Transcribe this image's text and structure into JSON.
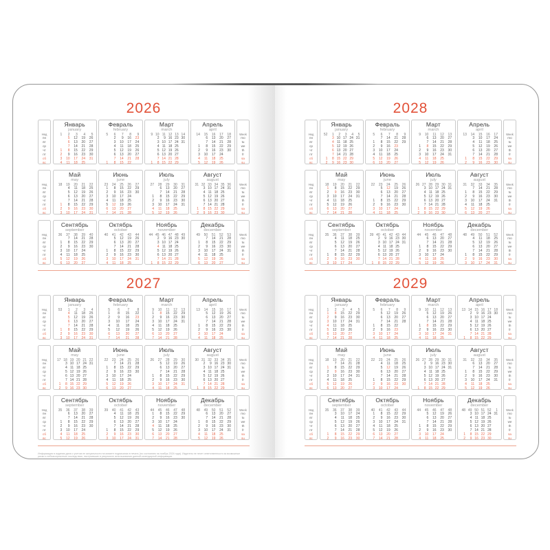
{
  "colors": {
    "accent": "#e25138",
    "accent_soft": "#e76a4f",
    "divider": "#eda28c",
    "text_dark": "#555555",
    "month_name": "#3a3a3a",
    "month_name_en": "#9a9a9a",
    "card_border": "#c9c9c9",
    "book_edge": "#949494"
  },
  "labels": {
    "week_col_ru": "Нед",
    "week_col_en": "Week",
    "days_ru": [
      "пн",
      "вт",
      "ср",
      "чт",
      "пт",
      "сб",
      "вс"
    ],
    "days_en": [
      "mo",
      "tu",
      "we",
      "th",
      "fr",
      "sa",
      "su"
    ]
  },
  "month_names": [
    {
      "ru": "Январь",
      "en": "january"
    },
    {
      "ru": "Февраль",
      "en": "february"
    },
    {
      "ru": "Март",
      "en": "march"
    },
    {
      "ru": "Апрель",
      "en": "april"
    },
    {
      "ru": "Май",
      "en": "may"
    },
    {
      "ru": "Июнь",
      "en": "june"
    },
    {
      "ru": "Июль",
      "en": "july"
    },
    {
      "ru": "Август",
      "en": "august"
    },
    {
      "ru": "Сентябрь",
      "en": "september"
    },
    {
      "ru": "Октябрь",
      "en": "october"
    },
    {
      "ru": "Ноябрь",
      "en": "november"
    },
    {
      "ru": "Декабрь",
      "en": "december"
    }
  ],
  "holidays_by_month": {
    "0": [
      1,
      2,
      3,
      4,
      5,
      6,
      7,
      8
    ],
    "1": [
      23
    ],
    "2": [
      8
    ],
    "4": [
      1,
      9
    ],
    "5": [
      12
    ],
    "10": [
      4
    ]
  },
  "book": {
    "footer_line1": "Информация в издании дана с учетом ее актуальности на момент подписания в печать (по состоянию на ноябрь 2024 года). Издатель не несет ответственности за возможные",
    "footer_line2": "риски и неблагоприятные последствия, наступившие в результате использования данной календарной информации."
  },
  "pages": [
    {
      "name": "left",
      "years": [
        {
          "year": "2026",
          "months": [
            {
              "start": 3,
              "days": 31,
              "weeks": [
                1,
                2,
                3,
                4,
                5
              ]
            },
            {
              "start": 6,
              "days": 28,
              "weeks": [
                5,
                6,
                7,
                8,
                9
              ]
            },
            {
              "start": 6,
              "days": 31,
              "weeks": [
                9,
                10,
                11,
                12,
                13,
                14
              ]
            },
            {
              "start": 2,
              "days": 30,
              "weeks": [
                14,
                15,
                16,
                17,
                18
              ]
            },
            {
              "start": 4,
              "days": 31,
              "weeks": [
                18,
                19,
                20,
                21,
                22
              ]
            },
            {
              "start": 0,
              "days": 30,
              "weeks": [
                23,
                24,
                25,
                26,
                27
              ]
            },
            {
              "start": 2,
              "days": 31,
              "weeks": [
                27,
                28,
                29,
                30,
                31
              ]
            },
            {
              "start": 5,
              "days": 31,
              "weeks": [
                31,
                32,
                33,
                34,
                35,
                36
              ]
            },
            {
              "start": 1,
              "days": 30,
              "weeks": [
                36,
                37,
                38,
                39,
                40
              ]
            },
            {
              "start": 3,
              "days": 31,
              "weeks": [
                40,
                41,
                42,
                43,
                44
              ]
            },
            {
              "start": 6,
              "days": 30,
              "weeks": [
                44,
                45,
                46,
                47,
                48,
                49
              ]
            },
            {
              "start": 1,
              "days": 31,
              "weeks": [
                49,
                50,
                51,
                52,
                53
              ]
            }
          ]
        },
        {
          "year": "2027",
          "months": [
            {
              "start": 4,
              "days": 31,
              "weeks": [
                53,
                1,
                2,
                3,
                4
              ]
            },
            {
              "start": 0,
              "days": 28,
              "weeks": [
                5,
                6,
                7,
                8
              ]
            },
            {
              "start": 0,
              "days": 31,
              "weeks": [
                9,
                10,
                11,
                12,
                13
              ]
            },
            {
              "start": 3,
              "days": 30,
              "weeks": [
                13,
                14,
                15,
                16,
                17
              ]
            },
            {
              "start": 5,
              "days": 31,
              "weeks": [
                17,
                18,
                19,
                20,
                21,
                22
              ]
            },
            {
              "start": 1,
              "days": 30,
              "weeks": [
                22,
                23,
                24,
                25,
                26
              ]
            },
            {
              "start": 3,
              "days": 31,
              "weeks": [
                26,
                27,
                28,
                29,
                30
              ]
            },
            {
              "start": 6,
              "days": 31,
              "weeks": [
                30,
                31,
                32,
                33,
                34,
                35
              ]
            },
            {
              "start": 2,
              "days": 30,
              "weeks": [
                35,
                36,
                37,
                38,
                39
              ]
            },
            {
              "start": 4,
              "days": 31,
              "weeks": [
                39,
                40,
                41,
                42,
                43
              ]
            },
            {
              "start": 0,
              "days": 30,
              "weeks": [
                44,
                45,
                46,
                47,
                48
              ]
            },
            {
              "start": 2,
              "days": 31,
              "weeks": [
                48,
                49,
                50,
                51,
                52
              ]
            }
          ]
        }
      ]
    },
    {
      "name": "right",
      "years": [
        {
          "year": "2028",
          "months": [
            {
              "start": 5,
              "days": 31,
              "weeks": [
                52,
                1,
                2,
                3,
                4,
                5
              ]
            },
            {
              "start": 1,
              "days": 29,
              "weeks": [
                5,
                6,
                7,
                8,
                9
              ]
            },
            {
              "start": 2,
              "days": 31,
              "weeks": [
                9,
                10,
                11,
                12,
                13
              ]
            },
            {
              "start": 5,
              "days": 30,
              "weeks": [
                13,
                14,
                15,
                16,
                17
              ]
            },
            {
              "start": 0,
              "days": 31,
              "weeks": [
                18,
                19,
                20,
                21,
                22
              ]
            },
            {
              "start": 3,
              "days": 30,
              "weeks": [
                22,
                23,
                24,
                25,
                26
              ]
            },
            {
              "start": 5,
              "days": 31,
              "weeks": [
                26,
                27,
                28,
                29,
                30,
                31
              ]
            },
            {
              "start": 1,
              "days": 31,
              "weeks": [
                31,
                32,
                33,
                34,
                35
              ]
            },
            {
              "start": 4,
              "days": 30,
              "weeks": [
                35,
                36,
                37,
                38,
                39
              ]
            },
            {
              "start": 6,
              "days": 31,
              "weeks": [
                39,
                40,
                41,
                42,
                43,
                44
              ]
            },
            {
              "start": 2,
              "days": 30,
              "weeks": [
                44,
                45,
                46,
                47,
                48
              ]
            },
            {
              "start": 4,
              "days": 31,
              "weeks": [
                48,
                49,
                50,
                51,
                52
              ]
            }
          ]
        },
        {
          "year": "2029",
          "months": [
            {
              "start": 0,
              "days": 31,
              "weeks": [
                1,
                2,
                3,
                4,
                5
              ]
            },
            {
              "start": 3,
              "days": 28,
              "weeks": [
                5,
                6,
                7,
                8,
                9
              ]
            },
            {
              "start": 3,
              "days": 31,
              "weeks": [
                9,
                10,
                11,
                12,
                13
              ]
            },
            {
              "start": 6,
              "days": 30,
              "weeks": [
                13,
                14,
                15,
                16,
                17,
                18
              ]
            },
            {
              "start": 1,
              "days": 31,
              "weeks": [
                18,
                19,
                20,
                21,
                22
              ]
            },
            {
              "start": 4,
              "days": 30,
              "weeks": [
                22,
                23,
                24,
                25,
                26
              ]
            },
            {
              "start": 6,
              "days": 31,
              "weeks": [
                26,
                27,
                28,
                29,
                30,
                31
              ]
            },
            {
              "start": 2,
              "days": 31,
              "weeks": [
                31,
                32,
                33,
                34,
                35
              ]
            },
            {
              "start": 5,
              "days": 30,
              "weeks": [
                35,
                36,
                37,
                38,
                39
              ]
            },
            {
              "start": 0,
              "days": 31,
              "weeks": [
                40,
                41,
                42,
                43,
                44
              ]
            },
            {
              "start": 3,
              "days": 30,
              "weeks": [
                44,
                45,
                46,
                47,
                48
              ]
            },
            {
              "start": 5,
              "days": 31,
              "weeks": [
                48,
                49,
                50,
                51,
                52,
                1
              ]
            }
          ]
        }
      ]
    }
  ]
}
